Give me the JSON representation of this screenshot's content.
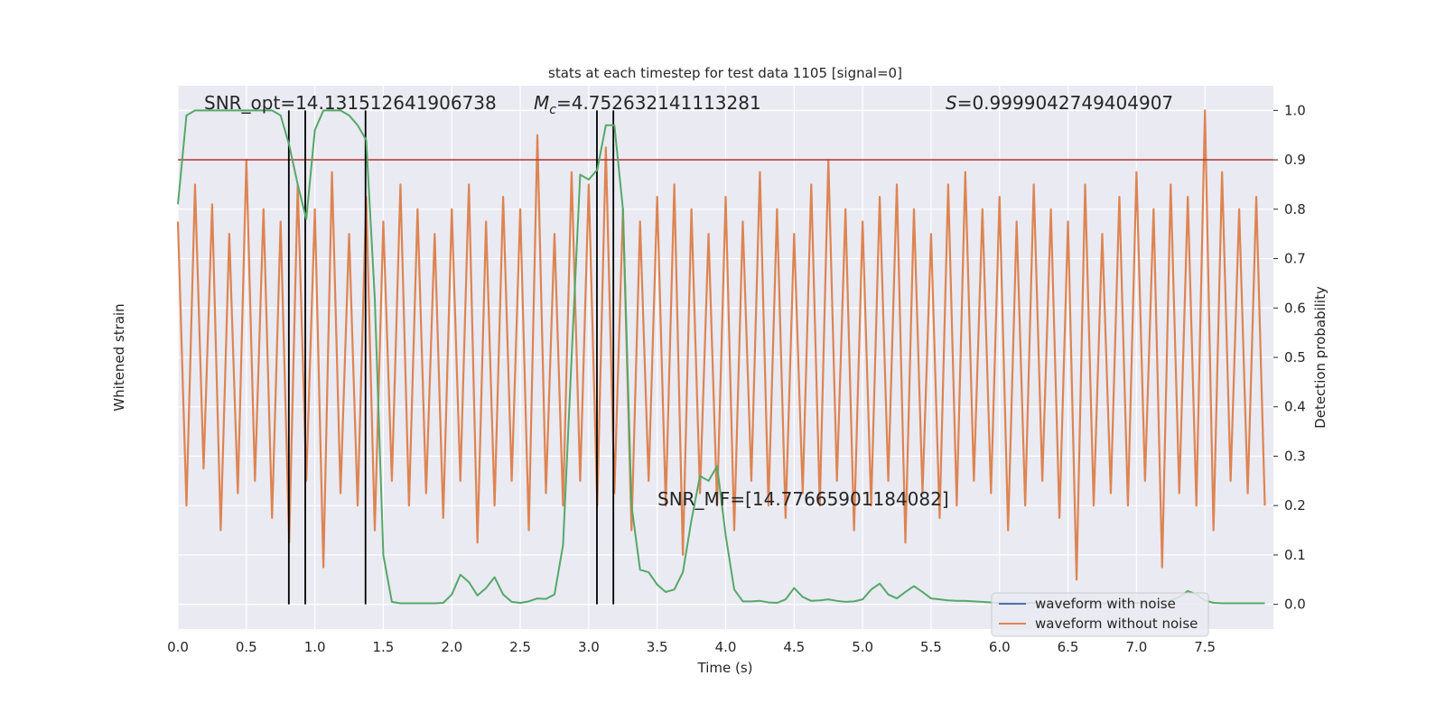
{
  "chart_data": {
    "type": "line",
    "title": "stats at each timestep for test data 1105 [signal=0]",
    "xlabel": "Time (s)",
    "ylabel": "Whitened strain",
    "y2label": "Detection probability",
    "x": [
      0,
      0.0625,
      0.125,
      0.1875,
      0.25,
      0.3125,
      0.375,
      0.4375,
      0.5,
      0.5625,
      0.625,
      0.6875,
      0.75,
      0.8125,
      0.875,
      0.9375,
      1,
      1.0625,
      1.125,
      1.1875,
      1.25,
      1.3125,
      1.375,
      1.4375,
      1.5,
      1.5625,
      1.625,
      1.6875,
      1.75,
      1.8125,
      1.875,
      1.9375,
      2,
      2.0625,
      2.125,
      2.1875,
      2.25,
      2.3125,
      2.375,
      2.4375,
      2.5,
      2.5625,
      2.625,
      2.6875,
      2.75,
      2.8125,
      2.875,
      2.9375,
      3,
      3.0625,
      3.125,
      3.1875,
      3.25,
      3.3125,
      3.375,
      3.4375,
      3.5,
      3.5625,
      3.625,
      3.6875,
      3.75,
      3.8125,
      3.875,
      3.9375,
      4,
      4.0625,
      4.125,
      4.1875,
      4.25,
      4.3125,
      4.375,
      4.4375,
      4.5,
      4.5625,
      4.625,
      4.6875,
      4.75,
      4.8125,
      4.875,
      4.9375,
      5,
      5.0625,
      5.125,
      5.1875,
      5.25,
      5.3125,
      5.375,
      5.4375,
      5.5,
      5.5625,
      5.625,
      5.6875,
      5.75,
      5.8125,
      5.875,
      5.9375,
      6,
      6.0625,
      6.125,
      6.1875,
      6.25,
      6.3125,
      6.375,
      6.4375,
      6.5,
      6.5625,
      6.625,
      6.6875,
      6.75,
      6.8125,
      6.875,
      6.9375,
      7,
      7.0625,
      7.125,
      7.1875,
      7.25,
      7.3125,
      7.375,
      7.4375,
      7.5,
      7.5625,
      7.625,
      7.6875,
      7.75,
      7.8125,
      7.875,
      7.9375
    ],
    "xlim": [
      0,
      8
    ],
    "xticks": [
      {
        "value": 0,
        "label": "0.0"
      },
      0.5,
      {
        "value": 1,
        "label": "1.0"
      },
      1.5,
      {
        "value": 2,
        "label": "2.0"
      },
      2.5,
      {
        "value": 3,
        "label": "3.0"
      },
      3.5,
      {
        "value": 4,
        "label": "4.0"
      },
      4.5,
      {
        "value": 5,
        "label": "5.0"
      },
      5.5,
      {
        "value": 6,
        "label": "6.0"
      },
      6.5,
      {
        "value": 7,
        "label": "7.0"
      },
      7.5
    ],
    "ylim": [
      -1.1,
      1.1
    ],
    "y2lim": [
      -0.05,
      1.05
    ],
    "y2ticks": [
      {
        "value": 0,
        "label": "0.0"
      },
      0.1,
      0.2,
      0.3,
      0.4,
      0.5,
      0.6,
      0.7,
      0.8,
      0.9,
      {
        "value": 1,
        "label": "1.0"
      }
    ],
    "grid": true,
    "legend": "lower right",
    "series": [
      {
        "name": "waveform with noise",
        "color": "#4c72b0"
      },
      {
        "name": "waveform without noise",
        "color": "#dd8452",
        "values": [
          0.55,
          -0.6,
          0.7,
          -0.45,
          0.62,
          -0.7,
          0.5,
          -0.55,
          0.8,
          -0.5,
          0.6,
          -0.65,
          0.55,
          -0.75,
          0.7,
          -0.5,
          0.6,
          -0.85,
          0.75,
          -0.55,
          0.5,
          -0.6,
          0.65,
          -0.7,
          0.55,
          -0.5,
          0.7,
          -0.6,
          0.6,
          -0.55,
          0.5,
          -0.65,
          0.6,
          -0.5,
          0.7,
          -0.75,
          0.55,
          -0.6,
          0.65,
          -0.5,
          0.6,
          -0.7,
          0.9,
          -0.55,
          0.5,
          -0.6,
          0.75,
          -0.5,
          0.7,
          -0.6,
          0.85,
          -0.55,
          0.6,
          -0.7,
          0.55,
          -0.5,
          0.65,
          -0.6,
          0.7,
          -0.8,
          0.6,
          -0.55,
          0.5,
          -0.6,
          0.65,
          -0.7,
          0.55,
          -0.5,
          0.75,
          -0.6,
          0.6,
          -0.65,
          0.5,
          -0.55,
          0.7,
          -0.6,
          0.8,
          -0.5,
          0.6,
          -0.7,
          0.55,
          -0.6,
          0.65,
          -0.5,
          0.7,
          -0.75,
          0.6,
          -0.55,
          0.5,
          -0.65,
          0.7,
          -0.6,
          0.75,
          -0.5,
          0.6,
          -0.55,
          0.65,
          -0.7,
          0.55,
          -0.6,
          0.7,
          -0.5,
          0.6,
          -0.65,
          0.55,
          -0.9,
          0.7,
          -0.6,
          0.5,
          -0.55,
          0.65,
          -0.6,
          0.75,
          -0.5,
          0.6,
          -0.85,
          0.7,
          -0.55,
          0.65,
          -0.6,
          1.0,
          -0.7,
          0.75,
          -0.5,
          0.6,
          -0.55,
          0.65,
          -0.6
        ]
      }
    ],
    "detection": {
      "color": "#55a868",
      "axis": "y2",
      "values": [
        0.81,
        0.99,
        1,
        1,
        1,
        1,
        1,
        1,
        1,
        1,
        1,
        1,
        0.99,
        0.93,
        0.85,
        0.78,
        0.96,
        1,
        1,
        1,
        0.99,
        0.97,
        0.94,
        0.62,
        0.1,
        0.005,
        0.002,
        0.002,
        0.002,
        0.002,
        0.002,
        0.003,
        0.02,
        0.06,
        0.045,
        0.018,
        0.033,
        0.055,
        0.02,
        0.005,
        0.003,
        0.006,
        0.012,
        0.011,
        0.02,
        0.12,
        0.5,
        0.87,
        0.86,
        0.88,
        0.97,
        0.97,
        0.8,
        0.2,
        0.07,
        0.065,
        0.04,
        0.025,
        0.03,
        0.065,
        0.17,
        0.26,
        0.25,
        0.28,
        0.14,
        0.03,
        0.006,
        0.006,
        0.007,
        0.004,
        0.003,
        0.01,
        0.033,
        0.015,
        0.007,
        0.008,
        0.01,
        0.007,
        0.005,
        0.006,
        0.01,
        0.03,
        0.042,
        0.02,
        0.012,
        0.025,
        0.037,
        0.025,
        0.012,
        0.01,
        0.008,
        0.007,
        0.007,
        0.006,
        0.005,
        0.004,
        0.003,
        0.003,
        0.002,
        0.002,
        0.003,
        0.002,
        0.002,
        0.002,
        0.002,
        0.003,
        0.002,
        0.002,
        0.002,
        0.002,
        0.002,
        0.002,
        0.003,
        0.003,
        0.004,
        0.005,
        0.008,
        0.015,
        0.027,
        0.02,
        0.008,
        0.003,
        0.002,
        0.002,
        0.002,
        0.002,
        0.002,
        0.002
      ]
    },
    "vlines": {
      "color": "#000000",
      "x": [
        0.81,
        0.93,
        1.37,
        3.06,
        3.18
      ]
    },
    "hline": {
      "color": "#b5403a",
      "axis": "y2",
      "value": 0.9
    },
    "annotations": {
      "snr_opt": "SNR_opt=14.131512641906738",
      "mc": {
        "symbol": "M",
        "subscript": "c",
        "text": "=4.752632141113281"
      },
      "s": {
        "symbol": "S",
        "text": "=0.9999042749404907"
      },
      "snr_mf": "SNR_MF=[14.77665901184082]"
    }
  }
}
